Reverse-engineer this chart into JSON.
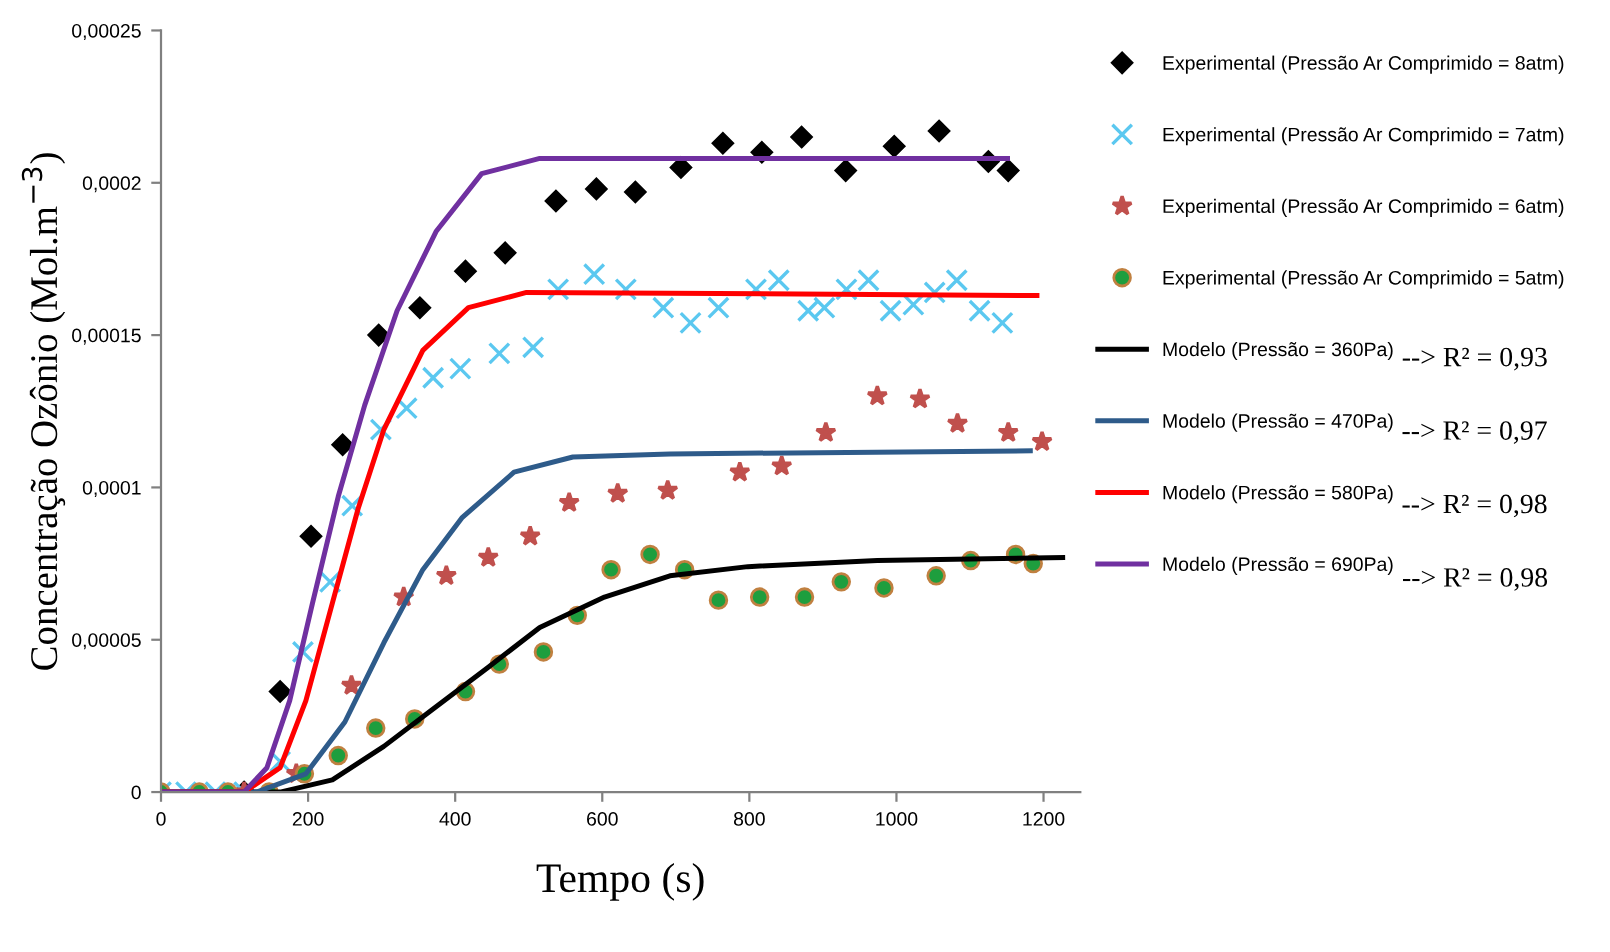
{
  "chart_data": {
    "type": "scatter",
    "xlabel": "Tempo (s)",
    "ylabel": "Concentração Ozônio (Mol.m$^{−3}$)",
    "xlim": [
      0,
      1250
    ],
    "xticks": [
      0,
      200,
      400,
      600,
      800,
      1000,
      1200
    ],
    "ylim": [
      0,
      0.00025
    ],
    "yticks": [
      {
        "value": 0,
        "label": "0"
      },
      {
        "value": 5e-05,
        "label": "0,00005"
      },
      {
        "value": 0.0001,
        "label": "0,0001"
      },
      {
        "value": 0.00015,
        "label": "0,00015"
      },
      {
        "value": 0.0002,
        "label": "0,0002"
      },
      {
        "value": 0.00025,
        "label": "0,00025"
      }
    ],
    "grid": false,
    "legend": "right",
    "annotations": [
      "--> R² = 0,93",
      "--> R² = 0,97",
      "--> R² = 0,98",
      "--> R² = 0,98"
    ],
    "series": [
      {
        "name": "Experimental (Pressão Ar Comprimido = 8atm)",
        "marker": "diamond",
        "color": "#000000",
        "x": [
          113,
          162,
          204,
          247,
          296,
          352,
          414,
          468,
          537,
          592,
          645,
          707,
          764,
          817,
          871,
          931,
          997,
          1058,
          1125,
          1152
        ],
        "values": [
          0,
          3.3e-05,
          8.4e-05,
          0.000114,
          0.00015,
          0.000159,
          0.000171,
          0.000177,
          0.000194,
          0.000198,
          0.000197,
          0.000205,
          0.000213,
          0.00021,
          0.000215,
          0.000204,
          0.000212,
          0.000217,
          0.000207,
          0.000204
        ]
      },
      {
        "name": "Experimental (Pressão Ar Comprimido = 7atm)",
        "marker": "cross",
        "color": "#5bc8f0",
        "x": [
          0,
          34,
          74,
          113,
          162,
          193,
          230,
          260,
          299,
          334,
          370,
          407,
          460,
          506,
          540,
          589,
          632,
          683,
          720,
          758,
          809,
          840,
          880,
          902,
          932,
          962,
          992,
          1023,
          1052,
          1082,
          1113,
          1144
        ],
        "values": [
          0,
          0,
          0,
          0,
          1e-05,
          4.6e-05,
          6.9e-05,
          9.4e-05,
          0.000119,
          0.000126,
          0.000136,
          0.000139,
          0.000144,
          0.000146,
          0.000165,
          0.00017,
          0.000165,
          0.000159,
          0.000154,
          0.000159,
          0.000165,
          0.000168,
          0.000158,
          0.000159,
          0.000165,
          0.000168,
          0.000158,
          0.00016,
          0.000164,
          0.000168,
          0.000158,
          0.000154
        ]
      },
      {
        "name": "Experimental (Pressão Ar Comprimido = 6atm)",
        "marker": "star",
        "color": "#c0504d",
        "x": [
          113,
          184,
          259,
          330,
          388,
          445,
          502,
          555,
          621,
          689,
          787,
          844,
          904,
          974,
          1032,
          1083,
          1152,
          1198
        ],
        "values": [
          0,
          6e-06,
          3.5e-05,
          6.4e-05,
          7.1e-05,
          7.7e-05,
          8.4e-05,
          9.5e-05,
          9.8e-05,
          9.9e-05,
          0.000105,
          0.000107,
          0.000118,
          0.00013,
          0.000129,
          0.000121,
          0.000118,
          0.000115
        ]
      },
      {
        "name": "Experimental (Pressão Ar Comprimido = 5atm)",
        "marker": "circle",
        "color": "#1e9e3e",
        "x": [
          0,
          52,
          91,
          147,
          195,
          241,
          292,
          345,
          414,
          460,
          520,
          566,
          612,
          665,
          712,
          758,
          814,
          875,
          925,
          983,
          1054,
          1101,
          1162,
          1186
        ],
        "values": [
          0,
          0,
          0,
          0,
          6e-06,
          1.2e-05,
          2.1e-05,
          2.4e-05,
          3.3e-05,
          4.2e-05,
          4.6e-05,
          5.8e-05,
          7.3e-05,
          7.8e-05,
          7.3e-05,
          6.3e-05,
          6.4e-05,
          6.4e-05,
          6.9e-05,
          6.7e-05,
          7.1e-05,
          7.6e-05,
          7.8e-05,
          7.5e-05
        ]
      },
      {
        "name": "Modelo (Pressão = 360Pa)",
        "type": "line",
        "color": "#000000",
        "x": [
          0,
          162,
          233,
          303,
          374,
          445,
          515,
          603,
          692,
          798,
          974,
          1226
        ],
        "values": [
          0,
          0,
          4e-06,
          1.5e-05,
          2.8e-05,
          4.1e-05,
          5.4e-05,
          6.4e-05,
          7.1e-05,
          7.4e-05,
          7.6e-05,
          7.7e-05
        ]
      },
      {
        "name": "Modelo (Pressão = 470Pa)",
        "type": "line",
        "color": "#2e5b8a",
        "x": [
          0,
          130,
          197,
          250,
          303,
          356,
          409,
          480,
          560,
          692,
          1182
        ],
        "values": [
          0,
          0,
          6e-06,
          2.3e-05,
          4.9e-05,
          7.3e-05,
          9e-05,
          0.000105,
          0.00011,
          0.000111,
          0.000112
        ]
      },
      {
        "name": "Modelo (Pressão = 580Pa)",
        "type": "line",
        "color": "#ff0000",
        "x": [
          0,
          113,
          162,
          197,
          233,
          268,
          303,
          356,
          418,
          497,
          1191
        ],
        "values": [
          0,
          0,
          8e-06,
          3e-05,
          6.2e-05,
          9.3e-05,
          0.000119,
          0.000145,
          0.000159,
          0.000164,
          0.000163
        ]
      },
      {
        "name": "Modelo (Pressão = 690Pa)",
        "type": "line",
        "color": "#7030a0",
        "x": [
          0,
          113,
          144,
          175,
          206,
          241,
          277,
          321,
          374,
          436,
          515,
          1151
        ],
        "values": [
          0,
          0,
          8e-06,
          3e-05,
          6.2e-05,
          9.7e-05,
          0.000127,
          0.000158,
          0.000184,
          0.000203,
          0.000208,
          0.000208
        ]
      }
    ]
  }
}
